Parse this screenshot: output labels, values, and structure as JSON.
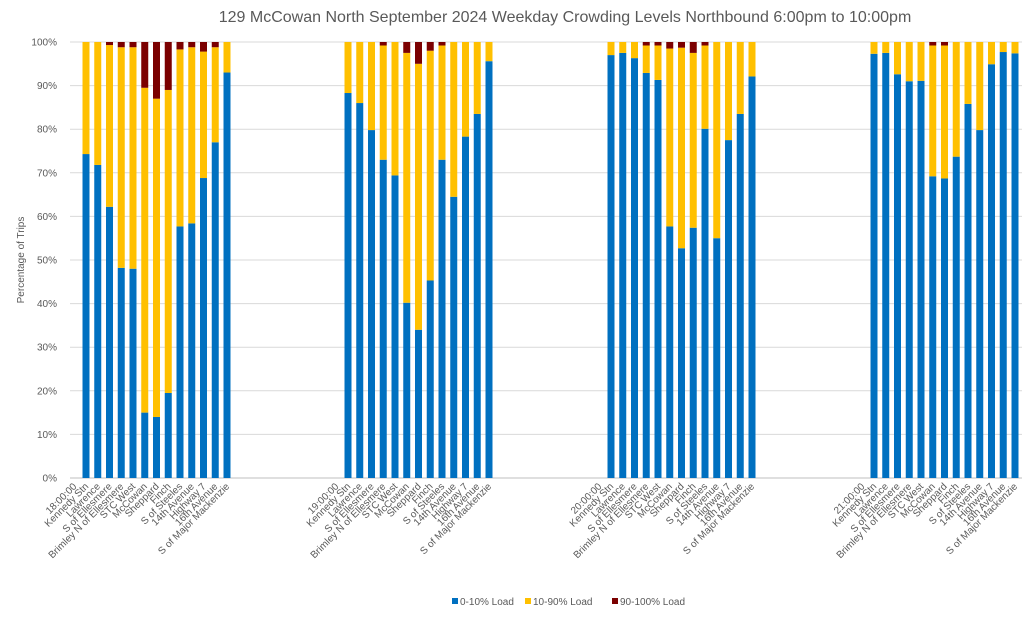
{
  "chart_data": {
    "type": "bar",
    "stacked": true,
    "percent_stacked": true,
    "title": "129 McCowan North September 2024  Weekday Crowding Levels Northbound 6:00pm to 10:00pm",
    "xlabel": "",
    "ylabel": "Percentage of Trips",
    "ylim": [
      0,
      100
    ],
    "yticks": [
      "0%",
      "10%",
      "20%",
      "30%",
      "40%",
      "50%",
      "60%",
      "70%",
      "80%",
      "90%",
      "100%"
    ],
    "grid": true,
    "legend_position": "bottom",
    "stations": [
      "Kennedy Stn",
      "Lawrence",
      "S of Ellesmere",
      "Brimley N of Ellesmere",
      "STC West",
      "McCowan",
      "Sheppard",
      "Finch",
      "S of Steeles",
      "14th Avenue",
      "Highway 7",
      "16th Avenue",
      "S of Major Mackenzie"
    ],
    "series_meta": [
      {
        "name": "0-10% Load",
        "color": "#0070C0"
      },
      {
        "name": "10-90% Load",
        "color": "#FFC000"
      },
      {
        "name": "90-100% Load",
        "color": "#7B0000"
      }
    ],
    "groups": [
      {
        "label": "18:00:00",
        "series": [
          {
            "name": "0-10% Load",
            "values": [
              74.3,
              71.8,
              62.2,
              48.2,
              48.0,
              15.0,
              14.0,
              19.5,
              57.7,
              58.4,
              68.8,
              77.0,
              93.0
            ]
          },
          {
            "name": "10-90% Load",
            "values": [
              25.7,
              28.2,
              37.1,
              50.6,
              50.8,
              74.5,
              73.0,
              69.5,
              40.6,
              40.4,
              29.0,
              21.8,
              7.0
            ]
          },
          {
            "name": "90-100% Load",
            "values": [
              0,
              0,
              0.7,
              1.2,
              1.2,
              10.5,
              13.0,
              11.0,
              1.7,
              1.2,
              2.2,
              1.2,
              0
            ]
          }
        ]
      },
      {
        "label": "19:00:00",
        "series": [
          {
            "name": "0-10% Load",
            "values": [
              88.3,
              86.0,
              79.8,
              73.0,
              69.4,
              40.2,
              34.0,
              45.3,
              73.0,
              64.5,
              78.3,
              83.5,
              95.6
            ]
          },
          {
            "name": "10-90% Load",
            "values": [
              11.7,
              14.0,
              20.2,
              26.2,
              30.6,
              57.3,
              61.0,
              52.7,
              26.2,
              35.5,
              21.7,
              16.5,
              4.4
            ]
          },
          {
            "name": "90-100% Load",
            "values": [
              0,
              0,
              0,
              0.8,
              0,
              2.5,
              5.0,
              2.0,
              0.8,
              0,
              0,
              0,
              0
            ]
          }
        ]
      },
      {
        "label": "20:00:00",
        "series": [
          {
            "name": "0-10% Load",
            "values": [
              97.0,
              97.5,
              96.3,
              92.9,
              91.3,
              57.7,
              52.7,
              57.4,
              80.1,
              55.0,
              77.5,
              83.5,
              92.1
            ]
          },
          {
            "name": "10-90% Load",
            "values": [
              3.0,
              2.5,
              3.7,
              6.3,
              7.9,
              40.8,
              46.0,
              40.1,
              19.1,
              45.0,
              22.5,
              16.5,
              7.9
            ]
          },
          {
            "name": "90-100% Load",
            "values": [
              0,
              0,
              0,
              0.8,
              0.8,
              1.5,
              1.3,
              2.5,
              0.8,
              0,
              0,
              0,
              0
            ]
          }
        ]
      },
      {
        "label": "21:00:00",
        "series": [
          {
            "name": "0-10% Load",
            "values": [
              97.3,
              97.5,
              92.6,
              91.0,
              91.1,
              69.2,
              68.7,
              73.7,
              85.8,
              79.8,
              94.9,
              97.7,
              97.4
            ]
          },
          {
            "name": "10-90% Load",
            "values": [
              2.7,
              2.5,
              7.4,
              9.0,
              8.9,
              30.0,
              30.5,
              26.3,
              14.2,
              20.2,
              5.1,
              2.3,
              2.6
            ]
          },
          {
            "name": "90-100% Load",
            "values": [
              0,
              0,
              0,
              0,
              0,
              0.8,
              0.8,
              0,
              0,
              0,
              0,
              0,
              0
            ]
          }
        ]
      }
    ]
  }
}
